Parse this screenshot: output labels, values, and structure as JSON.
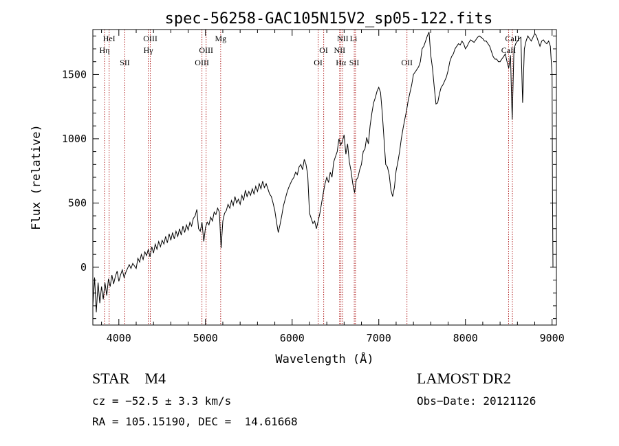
{
  "chart_data": {
    "type": "line",
    "title": "spec-56258-GAC105N15V2_sp05-122.fits",
    "xlabel": "Wavelength (Å)",
    "ylabel": "Flux (relative)",
    "xlim": [
      3700,
      9050
    ],
    "ylim": [
      -450,
      1850
    ],
    "xticks": [
      4000,
      5000,
      6000,
      7000,
      8000,
      9000
    ],
    "xtick_labels": [
      "4000",
      "5000",
      "6000",
      "7000",
      "8000",
      "9000"
    ],
    "yticks": [
      0,
      500,
      1000,
      1500
    ],
    "ytick_labels": [
      "0",
      "500",
      "1000",
      "1500"
    ],
    "series": [
      {
        "name": "flux",
        "color": "#000000",
        "points": [
          [
            3700,
            -300
          ],
          [
            3720,
            -80
          ],
          [
            3740,
            -350
          ],
          [
            3760,
            -120
          ],
          [
            3780,
            -280
          ],
          [
            3800,
            -150
          ],
          [
            3820,
            -250
          ],
          [
            3840,
            -120
          ],
          [
            3860,
            -220
          ],
          [
            3880,
            -90
          ],
          [
            3900,
            -150
          ],
          [
            3920,
            -60
          ],
          [
            3940,
            -130
          ],
          [
            3960,
            -70
          ],
          [
            3980,
            -30
          ],
          [
            4000,
            -110
          ],
          [
            4020,
            -60
          ],
          [
            4040,
            -20
          ],
          [
            4060,
            -80
          ],
          [
            4080,
            -40
          ],
          [
            4100,
            -10
          ],
          [
            4120,
            20
          ],
          [
            4140,
            -10
          ],
          [
            4160,
            30
          ],
          [
            4180,
            10
          ],
          [
            4200,
            -10
          ],
          [
            4220,
            70
          ],
          [
            4240,
            40
          ],
          [
            4260,
            100
          ],
          [
            4280,
            60
          ],
          [
            4300,
            120
          ],
          [
            4320,
            90
          ],
          [
            4340,
            140
          ],
          [
            4360,
            80
          ],
          [
            4380,
            160
          ],
          [
            4400,
            110
          ],
          [
            4420,
            180
          ],
          [
            4440,
            140
          ],
          [
            4460,
            200
          ],
          [
            4480,
            160
          ],
          [
            4500,
            210
          ],
          [
            4520,
            180
          ],
          [
            4540,
            240
          ],
          [
            4560,
            190
          ],
          [
            4580,
            260
          ],
          [
            4600,
            210
          ],
          [
            4620,
            270
          ],
          [
            4640,
            220
          ],
          [
            4660,
            280
          ],
          [
            4680,
            240
          ],
          [
            4700,
            300
          ],
          [
            4720,
            250
          ],
          [
            4740,
            320
          ],
          [
            4760,
            270
          ],
          [
            4780,
            330
          ],
          [
            4800,
            290
          ],
          [
            4820,
            350
          ],
          [
            4840,
            320
          ],
          [
            4860,
            380
          ],
          [
            4880,
            400
          ],
          [
            4900,
            450
          ],
          [
            4920,
            300
          ],
          [
            4940,
            280
          ],
          [
            4960,
            350
          ],
          [
            4980,
            200
          ],
          [
            5000,
            310
          ],
          [
            5020,
            350
          ],
          [
            5040,
            330
          ],
          [
            5060,
            390
          ],
          [
            5080,
            360
          ],
          [
            5100,
            430
          ],
          [
            5120,
            410
          ],
          [
            5140,
            460
          ],
          [
            5160,
            430
          ],
          [
            5180,
            150
          ],
          [
            5200,
            360
          ],
          [
            5220,
            420
          ],
          [
            5240,
            440
          ],
          [
            5260,
            490
          ],
          [
            5280,
            460
          ],
          [
            5300,
            520
          ],
          [
            5320,
            480
          ],
          [
            5340,
            550
          ],
          [
            5360,
            500
          ],
          [
            5380,
            530
          ],
          [
            5400,
            490
          ],
          [
            5420,
            560
          ],
          [
            5440,
            520
          ],
          [
            5460,
            600
          ],
          [
            5480,
            550
          ],
          [
            5500,
            590
          ],
          [
            5520,
            560
          ],
          [
            5540,
            610
          ],
          [
            5560,
            570
          ],
          [
            5580,
            630
          ],
          [
            5600,
            590
          ],
          [
            5620,
            650
          ],
          [
            5640,
            610
          ],
          [
            5660,
            670
          ],
          [
            5680,
            620
          ],
          [
            5700,
            650
          ],
          [
            5720,
            610
          ],
          [
            5740,
            570
          ],
          [
            5760,
            550
          ],
          [
            5780,
            500
          ],
          [
            5800,
            440
          ],
          [
            5820,
            350
          ],
          [
            5840,
            270
          ],
          [
            5860,
            330
          ],
          [
            5880,
            400
          ],
          [
            5900,
            480
          ],
          [
            5920,
            530
          ],
          [
            5940,
            580
          ],
          [
            5960,
            620
          ],
          [
            5980,
            650
          ],
          [
            6000,
            680
          ],
          [
            6020,
            700
          ],
          [
            6040,
            740
          ],
          [
            6060,
            720
          ],
          [
            6080,
            780
          ],
          [
            6100,
            800
          ],
          [
            6120,
            760
          ],
          [
            6140,
            840
          ],
          [
            6160,
            800
          ],
          [
            6180,
            720
          ],
          [
            6200,
            420
          ],
          [
            6220,
            380
          ],
          [
            6240,
            340
          ],
          [
            6260,
            360
          ],
          [
            6280,
            300
          ],
          [
            6300,
            360
          ],
          [
            6320,
            420
          ],
          [
            6340,
            500
          ],
          [
            6360,
            580
          ],
          [
            6380,
            650
          ],
          [
            6400,
            700
          ],
          [
            6420,
            660
          ],
          [
            6440,
            740
          ],
          [
            6460,
            700
          ],
          [
            6480,
            820
          ],
          [
            6500,
            860
          ],
          [
            6520,
            900
          ],
          [
            6540,
            1000
          ],
          [
            6560,
            950
          ],
          [
            6580,
            980
          ],
          [
            6600,
            1030
          ],
          [
            6620,
            880
          ],
          [
            6640,
            960
          ],
          [
            6660,
            820
          ],
          [
            6680,
            750
          ],
          [
            6700,
            650
          ],
          [
            6720,
            580
          ],
          [
            6740,
            680
          ],
          [
            6760,
            700
          ],
          [
            6780,
            760
          ],
          [
            6800,
            800
          ],
          [
            6820,
            900
          ],
          [
            6840,
            920
          ],
          [
            6860,
            1010
          ],
          [
            6880,
            960
          ],
          [
            6900,
            1100
          ],
          [
            6920,
            1200
          ],
          [
            6940,
            1280
          ],
          [
            6960,
            1320
          ],
          [
            6980,
            1370
          ],
          [
            7000,
            1400
          ],
          [
            7020,
            1360
          ],
          [
            7040,
            1200
          ],
          [
            7060,
            1000
          ],
          [
            7080,
            800
          ],
          [
            7100,
            780
          ],
          [
            7120,
            720
          ],
          [
            7140,
            600
          ],
          [
            7160,
            550
          ],
          [
            7180,
            620
          ],
          [
            7200,
            750
          ],
          [
            7220,
            820
          ],
          [
            7240,
            900
          ],
          [
            7260,
            1000
          ],
          [
            7280,
            1080
          ],
          [
            7300,
            1150
          ],
          [
            7320,
            1220
          ],
          [
            7340,
            1300
          ],
          [
            7360,
            1360
          ],
          [
            7380,
            1420
          ],
          [
            7400,
            1500
          ],
          [
            7420,
            1520
          ],
          [
            7440,
            1540
          ],
          [
            7460,
            1560
          ],
          [
            7480,
            1600
          ],
          [
            7500,
            1700
          ],
          [
            7520,
            1720
          ],
          [
            7540,
            1760
          ],
          [
            7560,
            1800
          ],
          [
            7580,
            1830
          ],
          [
            7600,
            1650
          ],
          [
            7620,
            1550
          ],
          [
            7640,
            1400
          ],
          [
            7660,
            1270
          ],
          [
            7680,
            1280
          ],
          [
            7700,
            1350
          ],
          [
            7720,
            1400
          ],
          [
            7740,
            1420
          ],
          [
            7760,
            1450
          ],
          [
            7780,
            1480
          ],
          [
            7800,
            1530
          ],
          [
            7820,
            1600
          ],
          [
            7840,
            1640
          ],
          [
            7860,
            1660
          ],
          [
            7880,
            1700
          ],
          [
            7900,
            1720
          ],
          [
            7920,
            1740
          ],
          [
            7940,
            1730
          ],
          [
            7960,
            1760
          ],
          [
            7980,
            1740
          ],
          [
            8000,
            1700
          ],
          [
            8020,
            1720
          ],
          [
            8040,
            1750
          ],
          [
            8060,
            1770
          ],
          [
            8080,
            1760
          ],
          [
            8100,
            1750
          ],
          [
            8120,
            1770
          ],
          [
            8140,
            1790
          ],
          [
            8160,
            1800
          ],
          [
            8180,
            1790
          ],
          [
            8200,
            1780
          ],
          [
            8220,
            1760
          ],
          [
            8240,
            1760
          ],
          [
            8260,
            1740
          ],
          [
            8280,
            1720
          ],
          [
            8300,
            1680
          ],
          [
            8320,
            1640
          ],
          [
            8340,
            1620
          ],
          [
            8360,
            1620
          ],
          [
            8380,
            1600
          ],
          [
            8400,
            1600
          ],
          [
            8420,
            1620
          ],
          [
            8440,
            1640
          ],
          [
            8460,
            1660
          ],
          [
            8480,
            1600
          ],
          [
            8500,
            1550
          ],
          [
            8520,
            1650
          ],
          [
            8540,
            1150
          ],
          [
            8560,
            1700
          ],
          [
            8580,
            1740
          ],
          [
            8600,
            1760
          ],
          [
            8620,
            1780
          ],
          [
            8640,
            1790
          ],
          [
            8660,
            1280
          ],
          [
            8680,
            1700
          ],
          [
            8700,
            1760
          ],
          [
            8720,
            1800
          ],
          [
            8740,
            1780
          ],
          [
            8760,
            1760
          ],
          [
            8780,
            1790
          ],
          [
            8800,
            1820
          ],
          [
            8820,
            1800
          ],
          [
            8840,
            1760
          ],
          [
            8860,
            1720
          ],
          [
            8880,
            1760
          ],
          [
            8900,
            1770
          ],
          [
            8920,
            1750
          ],
          [
            8940,
            1740
          ],
          [
            8960,
            1760
          ],
          [
            8980,
            1720
          ],
          [
            9000,
            1500
          ],
          [
            9005,
            600
          ],
          [
            9010,
            0
          ]
        ]
      }
    ],
    "line_labels": [
      {
        "label": "HeI",
        "wavelength": 3888,
        "row": 0
      },
      {
        "label": "Hη",
        "wavelength": 3835,
        "row": 1
      },
      {
        "label": "SII",
        "wavelength": 4069,
        "row": 2
      },
      {
        "label": "OIII",
        "wavelength": 4363,
        "row": 0
      },
      {
        "label": "Hγ",
        "wavelength": 4340,
        "row": 1
      },
      {
        "label": "Mg",
        "wavelength": 5175,
        "row": 0
      },
      {
        "label": "OIII",
        "wavelength": 5007,
        "row": 1
      },
      {
        "label": "OIII",
        "wavelength": 4959,
        "row": 2
      },
      {
        "label": "NII",
        "wavelength": 6584,
        "row": 0
      },
      {
        "label": "Li",
        "wavelength": 6708,
        "row": 0
      },
      {
        "label": "OI",
        "wavelength": 6364,
        "row": 1
      },
      {
        "label": "NII",
        "wavelength": 6548,
        "row": 1
      },
      {
        "label": "OI",
        "wavelength": 6300,
        "row": 2
      },
      {
        "label": "Hα",
        "wavelength": 6563,
        "row": 2
      },
      {
        "label": "SII",
        "wavelength": 6717,
        "row": 2
      },
      {
        "label": "OII",
        "wavelength": 7325,
        "row": 2
      },
      {
        "label": "CaII",
        "wavelength": 8542,
        "row": 0
      },
      {
        "label": "CaII",
        "wavelength": 8498,
        "row": 1
      }
    ],
    "line_marks": [
      3835,
      3888,
      4069,
      4340,
      4363,
      4959,
      5007,
      5175,
      6300,
      6364,
      6548,
      6563,
      6584,
      6717,
      6731,
      7325,
      8498,
      8542
    ],
    "line_mark_color": "#b22222"
  },
  "info": {
    "object": "STAR    M4",
    "survey": "LAMOST DR2",
    "cz": "cz = −52.5 ± 3.3 km/s",
    "obs_date": "Obs−Date: 20121126",
    "coords": "RA = 105.15190, DEC =  14.61668"
  }
}
